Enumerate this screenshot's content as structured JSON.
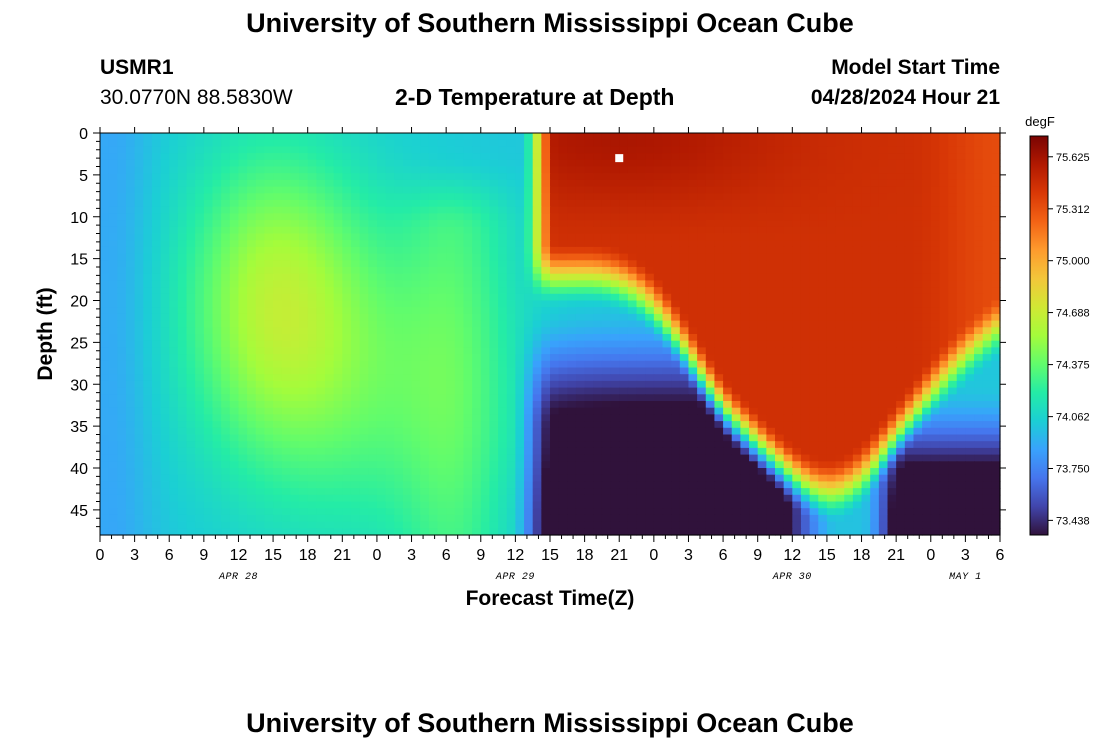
{
  "header": {
    "title": "University of Southern Mississippi Ocean Cube",
    "station_id": "USMR1",
    "coordinates": "30.0770N  88.5830W",
    "subtitle": "2-D Temperature at Depth",
    "start_label": "Model Start Time",
    "start_value": "04/28/2024 Hour 21"
  },
  "footer": {
    "title": "University of Southern Mississippi Ocean Cube"
  },
  "chart_data": {
    "type": "heatmap",
    "title": "2-D Temperature at Depth",
    "xlabel": "Forecast Time(Z)",
    "ylabel": "Depth (ft)",
    "x_ticks": [
      "0",
      "3",
      "6",
      "9",
      "12",
      "15",
      "18",
      "21",
      "0",
      "3",
      "6",
      "9",
      "12",
      "15",
      "18",
      "21",
      "0",
      "3",
      "6",
      "9",
      "12",
      "15",
      "18",
      "21",
      "0",
      "3",
      "6"
    ],
    "x_range_hours": [
      0,
      78
    ],
    "date_labels": [
      {
        "label": "APR 28",
        "hour": 12
      },
      {
        "label": "APR 29",
        "hour": 36
      },
      {
        "label": "APR 30",
        "hour": 60
      },
      {
        "label": "MAY 1",
        "hour": 75
      }
    ],
    "y_ticks": [
      "0",
      "5",
      "10",
      "15",
      "20",
      "25",
      "30",
      "35",
      "40",
      "45"
    ],
    "y_range_ft": [
      0,
      48
    ],
    "colorbar": {
      "unit": "degF",
      "range": [
        73.35,
        75.75
      ],
      "labels": [
        "75.625",
        "75.312",
        "75.000",
        "74.688",
        "74.375",
        "74.062",
        "73.750",
        "73.438"
      ],
      "label_values": [
        75.625,
        75.312,
        75.0,
        74.688,
        74.375,
        74.062,
        73.75,
        73.438
      ]
    },
    "marker": {
      "hour": 45,
      "depth_ft": 3
    },
    "colors": {
      "stops": [
        "#30123b",
        "#4145ab",
        "#4675ed",
        "#39a2fc",
        "#1bcfd4",
        "#24eca6",
        "#61fc6c",
        "#a4fc3b",
        "#d1e834",
        "#f3c63a",
        "#fe9b2d",
        "#f36315",
        "#d93806",
        "#b11901",
        "#7a0402"
      ]
    }
  }
}
